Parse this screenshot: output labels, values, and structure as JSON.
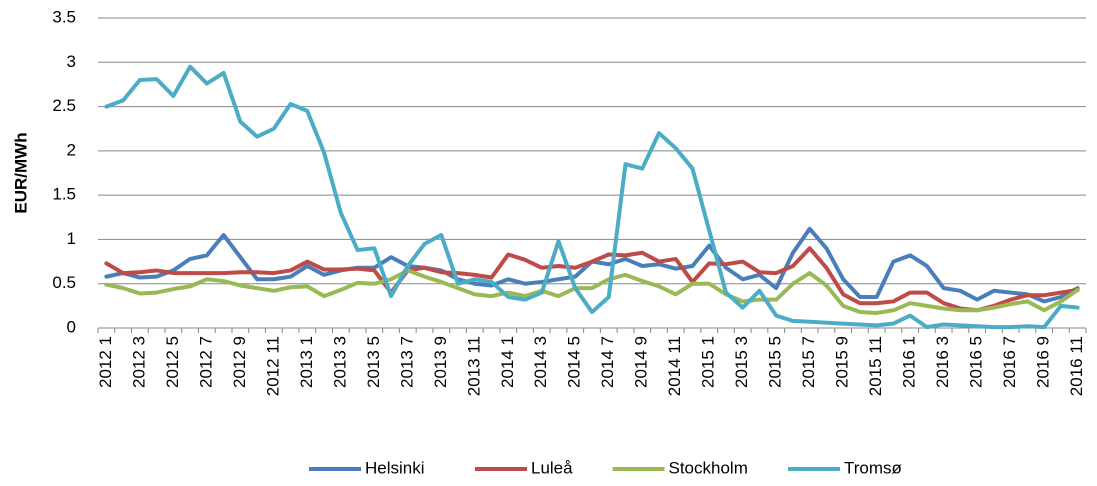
{
  "chart_data": {
    "type": "line",
    "y_label": "EUR/MWh",
    "categories": [
      "2012 1",
      null,
      "2012 3",
      null,
      "2012 5",
      null,
      "2012 7",
      null,
      "2012 9",
      null,
      "2012 11",
      null,
      "2013 1",
      null,
      "2013 3",
      null,
      "2013 5",
      null,
      "2013 7",
      null,
      "2013 9",
      null,
      "2013 11",
      null,
      "2014 1",
      null,
      "2014 3",
      null,
      "2014 5",
      null,
      "2014 7",
      null,
      "2014 9",
      null,
      "2014 11",
      null,
      "2015 1",
      null,
      "2015 3",
      null,
      "2015 5",
      null,
      "2015 7",
      null,
      "2015 9",
      null,
      "2015 11",
      null,
      "2016 1",
      null,
      "2016 3",
      null,
      "2016 5",
      null,
      "2016 7",
      null,
      "2016 9",
      null,
      "2016 11"
    ],
    "series": [
      {
        "name": "Helsinki",
        "color": "#4a7ebb",
        "values": [
          0.58,
          0.62,
          0.57,
          0.58,
          0.65,
          0.78,
          0.82,
          1.05,
          0.8,
          0.55,
          0.55,
          0.58,
          0.7,
          0.6,
          0.65,
          0.68,
          0.68,
          0.8,
          0.7,
          0.68,
          0.65,
          0.55,
          0.5,
          0.48,
          0.55,
          0.5,
          0.52,
          0.55,
          0.58,
          0.75,
          0.72,
          0.78,
          0.7,
          0.72,
          0.67,
          0.7,
          0.93,
          0.68,
          0.55,
          0.6,
          0.45,
          0.85,
          1.12,
          0.9,
          0.55,
          0.35,
          0.35,
          0.75,
          0.82,
          0.7,
          0.45,
          0.42,
          0.32,
          0.42,
          0.4,
          0.38,
          0.3,
          0.35,
          0.45
        ]
      },
      {
        "name": "Luleå",
        "color": "#be4b48",
        "values": [
          0.73,
          0.62,
          0.63,
          0.65,
          0.62,
          0.62,
          0.62,
          0.62,
          0.63,
          0.63,
          0.62,
          0.65,
          0.75,
          0.66,
          0.66,
          0.67,
          0.65,
          0.4,
          0.65,
          0.68,
          0.63,
          0.62,
          0.6,
          0.57,
          0.83,
          0.77,
          0.68,
          0.7,
          0.68,
          0.75,
          0.83,
          0.82,
          0.85,
          0.75,
          0.78,
          0.52,
          0.73,
          0.72,
          0.75,
          0.63,
          0.62,
          0.7,
          0.9,
          0.68,
          0.38,
          0.28,
          0.28,
          0.3,
          0.4,
          0.4,
          0.28,
          0.22,
          0.2,
          0.25,
          0.32,
          0.37,
          0.37,
          0.4,
          0.43
        ]
      },
      {
        "name": "Stockholm",
        "color": "#98b954",
        "values": [
          0.49,
          0.45,
          0.39,
          0.4,
          0.44,
          0.47,
          0.55,
          0.53,
          0.48,
          0.45,
          0.42,
          0.46,
          0.47,
          0.36,
          0.43,
          0.51,
          0.5,
          0.55,
          0.65,
          0.58,
          0.52,
          0.45,
          0.38,
          0.36,
          0.4,
          0.36,
          0.42,
          0.36,
          0.45,
          0.45,
          0.55,
          0.6,
          0.53,
          0.47,
          0.38,
          0.5,
          0.5,
          0.38,
          0.3,
          0.32,
          0.32,
          0.5,
          0.62,
          0.48,
          0.25,
          0.18,
          0.17,
          0.2,
          0.28,
          0.25,
          0.22,
          0.2,
          0.2,
          0.23,
          0.27,
          0.3,
          0.2,
          0.3,
          0.43
        ]
      },
      {
        "name": "Tromsø",
        "color": "#4bacc6",
        "values": [
          2.5,
          2.57,
          2.8,
          2.81,
          2.62,
          2.95,
          2.76,
          2.88,
          2.33,
          2.16,
          2.25,
          2.53,
          2.45,
          1.98,
          1.3,
          0.88,
          0.9,
          0.36,
          0.7,
          0.95,
          1.05,
          0.5,
          0.55,
          0.52,
          0.35,
          0.32,
          0.4,
          0.98,
          0.45,
          0.18,
          0.35,
          1.85,
          1.8,
          2.2,
          2.03,
          1.8,
          1.1,
          0.4,
          0.23,
          0.42,
          0.14,
          0.08,
          0.07,
          0.06,
          0.05,
          0.04,
          0.03,
          0.05,
          0.14,
          0.01,
          0.04,
          0.03,
          0.02,
          0.01,
          0.01,
          0.02,
          0.01,
          0.25,
          0.23
        ]
      }
    ],
    "ylim": [
      0,
      3.5
    ],
    "yticks": [
      0,
      0.5,
      1,
      1.5,
      2,
      2.5,
      3,
      3.5
    ],
    "grid": true,
    "legend": "bottom"
  }
}
